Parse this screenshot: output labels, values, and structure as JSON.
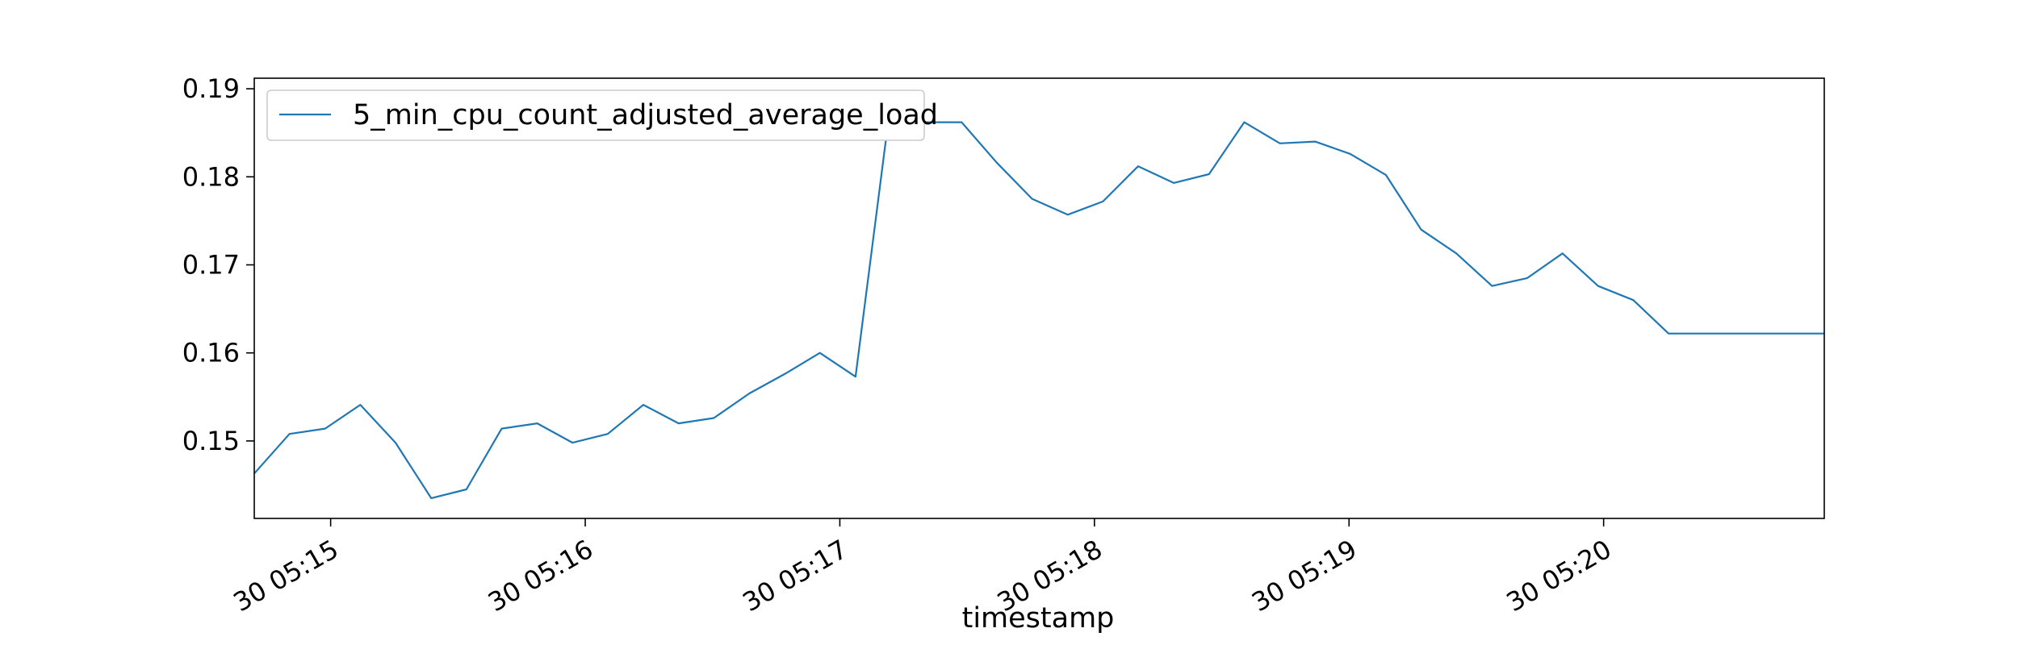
{
  "chart_data": {
    "type": "line",
    "title": "",
    "xlabel": "timestamp",
    "ylabel": "",
    "legend_position": "upper-left",
    "grid": false,
    "colors": {
      "series": "#1f77b4",
      "axes": "#000000",
      "background": "#ffffff"
    },
    "xlim_seconds": [
      0,
      370
    ],
    "x_ticks": [
      {
        "label": "30 05:15",
        "t": 18
      },
      {
        "label": "30 05:16",
        "t": 78
      },
      {
        "label": "30 05:17",
        "t": 138
      },
      {
        "label": "30 05:18",
        "t": 198
      },
      {
        "label": "30 05:19",
        "t": 258
      },
      {
        "label": "30 05:20",
        "t": 318
      }
    ],
    "ylim": [
      0.1412,
      0.1912
    ],
    "y_ticks": [
      0.15,
      0.16,
      0.17,
      0.18,
      0.19
    ],
    "y_tick_labels": [
      "0.15",
      "0.16",
      "0.17",
      "0.18",
      "0.19"
    ],
    "series": [
      {
        "name": "5_min_cpu_count_adjusted_average_load",
        "x_seconds": [
          0,
          8.3,
          16.7,
          25,
          33.3,
          41.7,
          50,
          58.3,
          66.7,
          75,
          83.3,
          91.7,
          100,
          108.3,
          116.7,
          125,
          133.3,
          141.7,
          150,
          158.3,
          166.7,
          175,
          183.3,
          191.7,
          200,
          208.3,
          216.7,
          225,
          233.3,
          241.7,
          250,
          258.3,
          266.7,
          275,
          283.3,
          291.7,
          300,
          308.3,
          316.7,
          325,
          333.3,
          341.7,
          350,
          358.3,
          366.7,
          370
        ],
        "values": [
          0.1463,
          0.1508,
          0.1514,
          0.1541,
          0.1498,
          0.1435,
          0.1445,
          0.1514,
          0.152,
          0.1498,
          0.1508,
          0.1541,
          0.152,
          0.1526,
          0.1554,
          0.1576,
          0.16,
          0.1573,
          0.1885,
          0.1862,
          0.1862,
          0.1816,
          0.1775,
          0.1757,
          0.1772,
          0.1812,
          0.1793,
          0.1803,
          0.1862,
          0.1838,
          0.184,
          0.1826,
          0.1802,
          0.174,
          0.1713,
          0.1676,
          0.1685,
          0.1713,
          0.1676,
          0.166,
          0.1622,
          0.1622,
          0.1622,
          0.1622,
          0.1622,
          0.1622
        ]
      }
    ]
  }
}
